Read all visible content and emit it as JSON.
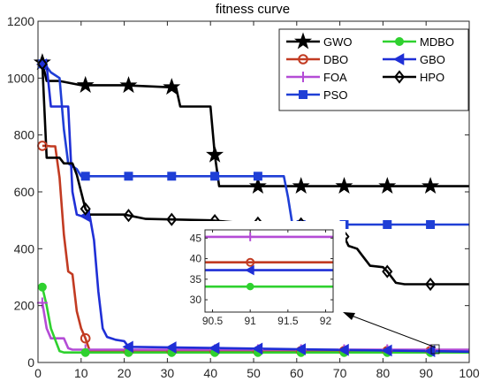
{
  "chart_data": {
    "type": "line",
    "title": "fitness curve",
    "xlabel": "",
    "ylabel": "",
    "xlim": [
      0,
      100
    ],
    "ylim": [
      0,
      1200
    ],
    "x_ticks": [
      0,
      10,
      20,
      30,
      40,
      50,
      60,
      70,
      80,
      90,
      100
    ],
    "y_ticks": [
      0,
      200,
      400,
      600,
      800,
      1000,
      1200
    ],
    "grid": false,
    "legend_position": "top-right",
    "legend_columns": 2,
    "series": [
      {
        "name": "GWO",
        "color": "#000000",
        "marker": "star",
        "points": [
          [
            1,
            1055
          ],
          [
            2,
            990
          ],
          [
            3,
            990
          ],
          [
            5,
            990
          ],
          [
            10,
            975
          ],
          [
            20,
            975
          ],
          [
            30,
            968
          ],
          [
            32,
            968
          ],
          [
            33,
            900
          ],
          [
            40,
            900
          ],
          [
            41,
            730
          ],
          [
            42,
            620
          ],
          [
            100,
            620
          ]
        ]
      },
      {
        "name": "DBO",
        "color": "#c23b22",
        "marker": "circle",
        "points": [
          [
            1,
            762
          ],
          [
            2,
            762
          ],
          [
            3,
            760
          ],
          [
            4,
            760
          ],
          [
            5,
            650
          ],
          [
            6,
            450
          ],
          [
            7,
            320
          ],
          [
            8,
            310
          ],
          [
            9,
            180
          ],
          [
            10,
            120
          ],
          [
            11,
            85
          ],
          [
            12,
            40
          ],
          [
            100,
            40
          ]
        ]
      },
      {
        "name": "FOA",
        "color": "#b44cd6",
        "marker": "plus",
        "points": [
          [
            1,
            210
          ],
          [
            2,
            120
          ],
          [
            3,
            85
          ],
          [
            4,
            85
          ],
          [
            5,
            85
          ],
          [
            6,
            85
          ],
          [
            7,
            50
          ],
          [
            8,
            45
          ],
          [
            100,
            45
          ]
        ]
      },
      {
        "name": "PSO",
        "color": "#1f3fd6",
        "marker": "square",
        "points": [
          [
            1,
            1050
          ],
          [
            2,
            1040
          ],
          [
            3,
            1020
          ],
          [
            5,
            1000
          ],
          [
            6,
            820
          ],
          [
            7,
            700
          ],
          [
            8,
            690
          ],
          [
            9,
            680
          ],
          [
            10,
            655
          ],
          [
            57,
            655
          ],
          [
            58,
            580
          ],
          [
            59,
            485
          ],
          [
            100,
            485
          ]
        ]
      },
      {
        "name": "MDBO",
        "color": "#2fd12f",
        "marker": "filled-circle",
        "points": [
          [
            1,
            265
          ],
          [
            2,
            200
          ],
          [
            3,
            120
          ],
          [
            4,
            80
          ],
          [
            5,
            40
          ],
          [
            6,
            35
          ],
          [
            100,
            35
          ]
        ]
      },
      {
        "name": "GBO",
        "color": "#1f2fd6",
        "marker": "triangle-left",
        "points": [
          [
            1,
            1048
          ],
          [
            2,
            1045
          ],
          [
            3,
            900
          ],
          [
            7,
            900
          ],
          [
            8,
            600
          ],
          [
            9,
            520
          ],
          [
            10,
            515
          ],
          [
            12,
            515
          ],
          [
            13,
            430
          ],
          [
            14,
            250
          ],
          [
            15,
            120
          ],
          [
            16,
            90
          ],
          [
            18,
            80
          ],
          [
            20,
            75
          ],
          [
            21,
            55
          ],
          [
            100,
            38
          ]
        ]
      },
      {
        "name": "HPO",
        "color": "#000000",
        "marker": "diamond",
        "points": [
          [
            1,
            1050
          ],
          [
            2,
            720
          ],
          [
            5,
            720
          ],
          [
            6,
            700
          ],
          [
            8,
            700
          ],
          [
            9,
            660
          ],
          [
            10,
            600
          ],
          [
            11,
            540
          ],
          [
            12,
            520
          ],
          [
            20,
            520
          ],
          [
            25,
            505
          ],
          [
            40,
            500
          ],
          [
            48,
            490
          ],
          [
            60,
            490
          ],
          [
            64,
            480
          ],
          [
            70,
            475
          ],
          [
            72,
            410
          ],
          [
            74,
            400
          ],
          [
            75,
            380
          ],
          [
            77,
            340
          ],
          [
            80,
            335
          ],
          [
            81,
            320
          ],
          [
            82,
            300
          ],
          [
            83,
            280
          ],
          [
            85,
            275
          ],
          [
            100,
            275
          ]
        ]
      }
    ],
    "marker_x": [
      1,
      11,
      21,
      31,
      41,
      51,
      61,
      71,
      81,
      91
    ],
    "inset": {
      "xlim": [
        90.4,
        92.1
      ],
      "ylim": [
        27,
        47
      ],
      "x_ticks": [
        90.5,
        91,
        91.5,
        92
      ],
      "y_ticks": [
        30,
        35,
        40,
        45
      ],
      "series": [
        {
          "name": "FOA",
          "value": 45.3
        },
        {
          "name": "DBO",
          "value": 39.1
        },
        {
          "name": "GBO",
          "value": 37.2
        },
        {
          "name": "MDBO",
          "value": 33.2
        }
      ]
    }
  }
}
